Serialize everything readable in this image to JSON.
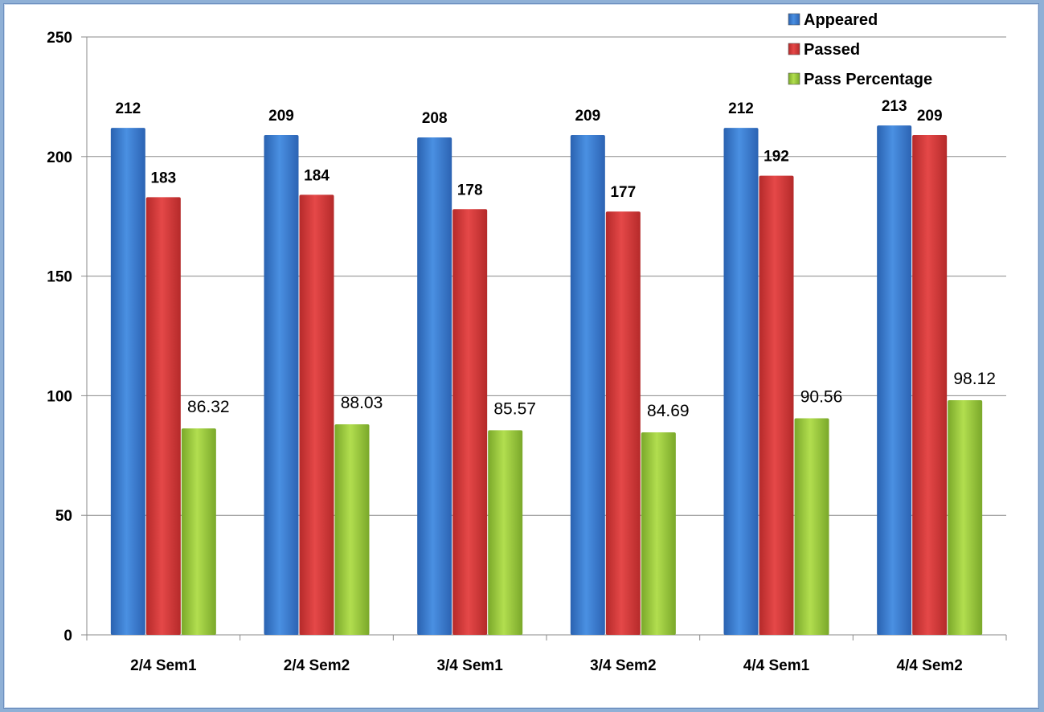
{
  "chart_data": {
    "type": "bar",
    "title": "",
    "xlabel": "",
    "ylabel": "",
    "ylim": [
      0,
      250
    ],
    "yticks": [
      0,
      50,
      100,
      150,
      200,
      250
    ],
    "grid": true,
    "legend_position": "top-right",
    "categories": [
      "2/4 Sem1",
      "2/4 Sem2",
      "3/4 Sem1",
      "3/4 Sem2",
      "4/4 Sem1",
      "4/4 Sem2"
    ],
    "series": [
      {
        "name": "Appeared",
        "values": [
          212,
          209,
          208,
          209,
          212,
          213
        ],
        "color": "#3a7fd5",
        "labels": [
          "212",
          "209",
          "208",
          "209",
          "212",
          "213"
        ]
      },
      {
        "name": "Passed",
        "values": [
          183,
          184,
          178,
          177,
          192,
          209
        ],
        "color": "#d93a3a",
        "labels": [
          "183",
          "184",
          "178",
          "177",
          "192",
          "209"
        ]
      },
      {
        "name": "Pass Percentage",
        "values": [
          86.32,
          88.03,
          85.57,
          84.69,
          90.56,
          98.12
        ],
        "color": "#9bcb3c",
        "labels": [
          "86.32",
          "88.03",
          "85.57",
          "84.69",
          "90.56",
          "98.12"
        ]
      }
    ]
  }
}
